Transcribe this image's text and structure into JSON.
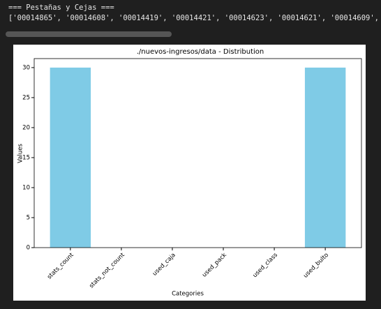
{
  "output_lines": [
    "=== Pestañas y Cejas ===",
    "['00014865', '00014608', '00014419', '00014421', '00014623', '00014621', '00014609', '000"
  ],
  "chart_data": {
    "type": "bar",
    "title": "./nuevos-ingresos/data - Distribution",
    "x_label": "Categories",
    "y_label": "Values",
    "categories": [
      "stats_count",
      "stats_not_count",
      "used_caja",
      "used_pack",
      "used_class",
      "used_bulto"
    ],
    "values": [
      30,
      0,
      0,
      0,
      0,
      30
    ],
    "color": "#7fcbe6",
    "ylim": [
      0,
      31.5
    ],
    "yticks": [
      0,
      5,
      10,
      15,
      20,
      25,
      30
    ]
  }
}
